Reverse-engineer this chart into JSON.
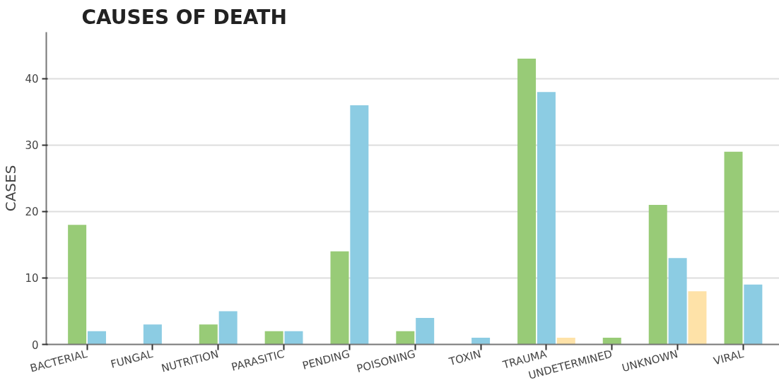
{
  "chart_data": {
    "type": "bar",
    "title": "CAUSES OF DEATH",
    "ylabel": "CASES",
    "categories": [
      "BACTERIAL",
      "FUNGAL",
      "NUTRITION",
      "PARASITIC",
      "PENDING",
      "POISONING",
      "TOXIN",
      "TRAUMA",
      "UNDETERMINED",
      "UNKNOWN",
      "VIRAL"
    ],
    "series": [
      {
        "color": "#98cb77",
        "values": [
          18,
          null,
          3,
          2,
          14,
          2,
          null,
          43,
          1,
          21,
          29
        ]
      },
      {
        "color": "#8ccce3",
        "values": [
          2,
          3,
          5,
          2,
          36,
          4,
          1,
          38,
          null,
          13,
          9
        ]
      },
      {
        "color": "#fee2a8",
        "values": [
          null,
          null,
          null,
          null,
          null,
          null,
          null,
          1,
          null,
          8,
          null
        ]
      }
    ],
    "ylim": [
      0,
      47
    ],
    "yticks": [
      0,
      10,
      20,
      30,
      40
    ],
    "grid": "y"
  }
}
